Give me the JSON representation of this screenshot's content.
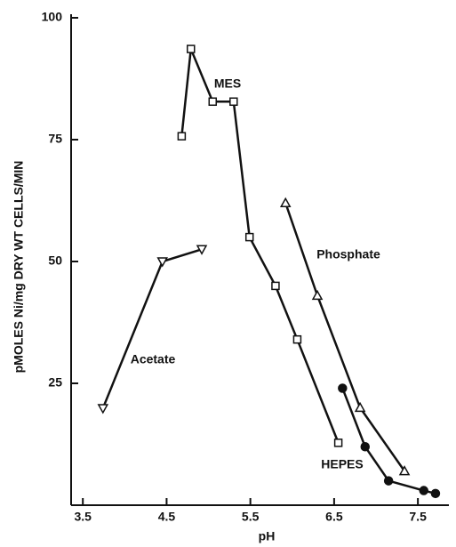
{
  "chart_data": {
    "type": "line",
    "xlabel": "pH",
    "ylabel": "pMOLES Ni/mg DRY WT CELLS/MIN",
    "xlim": [
      3.36,
      7.87
    ],
    "ylim": [
      0,
      100
    ],
    "xticks": [
      3.5,
      4.5,
      5.5,
      6.5,
      7.5
    ],
    "yticks": [
      25,
      50,
      75,
      100
    ],
    "series": [
      {
        "name": "MES",
        "color": "#111111",
        "marker": "square",
        "x": [
          4.68,
          4.79,
          5.05,
          5.3,
          5.49,
          5.8,
          6.06,
          6.55
        ],
        "values": [
          75.7,
          93.6,
          82.8,
          82.8,
          55,
          45,
          34,
          12.8
        ]
      },
      {
        "name": "Phosphate",
        "color": "#111111",
        "marker": "triangle-up",
        "x": [
          5.92,
          6.3,
          6.81,
          7.34
        ],
        "values": [
          62,
          43,
          20,
          7
        ]
      },
      {
        "name": "Acetate",
        "color": "#111111",
        "marker": "triangle-down",
        "x": [
          3.74,
          4.45,
          4.92
        ],
        "values": [
          19.9,
          50,
          52.5
        ]
      },
      {
        "name": "HEPES",
        "color": "#111111",
        "marker": "circle-filled",
        "x": [
          6.6,
          6.87,
          7.15,
          7.57,
          7.71
        ],
        "values": [
          24,
          12,
          5,
          3,
          2.4
        ]
      }
    ]
  }
}
